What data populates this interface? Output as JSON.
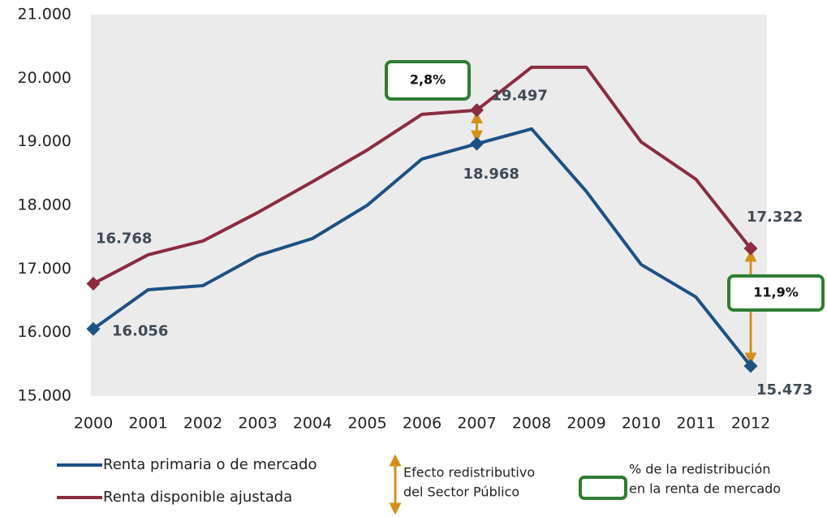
{
  "chart_data": {
    "type": "line",
    "categories": [
      "2000",
      "2001",
      "2002",
      "2003",
      "2004",
      "2005",
      "2006",
      "2007",
      "2008",
      "2009",
      "2010",
      "2011",
      "2012"
    ],
    "series": [
      {
        "name": "Renta primaria o de mercado",
        "color": "#1d5184",
        "values": [
          16056,
          16673,
          16737,
          17209,
          17478,
          18001,
          18729,
          18968,
          19202,
          18218,
          17069,
          16558,
          15473
        ],
        "value_labels": [
          "16.056",
          null,
          null,
          null,
          null,
          null,
          null,
          "18.968",
          null,
          null,
          null,
          null,
          "15.473"
        ]
      },
      {
        "name": "Renta disponible ajustada",
        "color": "#8b2c3f",
        "values": [
          16768,
          17222,
          17439,
          17886,
          18372,
          18870,
          19432,
          19497,
          20172,
          20172,
          18997,
          18410,
          17322
        ],
        "value_labels": [
          "16.768",
          null,
          null,
          null,
          null,
          null,
          null,
          "19.497",
          null,
          null,
          null,
          null,
          "17.322"
        ]
      }
    ],
    "ylim": [
      15000,
      21000
    ],
    "yticks": [
      {
        "value": 15000,
        "label": "15.000"
      },
      {
        "value": 16000,
        "label": "16.000"
      },
      {
        "value": 17000,
        "label": "17.000"
      },
      {
        "value": 18000,
        "label": "18.000"
      },
      {
        "value": 19000,
        "label": "19.000"
      },
      {
        "value": 20000,
        "label": "20.000"
      },
      {
        "value": 21000,
        "label": "21.000"
      }
    ],
    "annotations": [
      {
        "text": "2,8%",
        "category": "2007"
      },
      {
        "text": "11,9%",
        "category": "2012"
      }
    ],
    "arrow_legend": [
      "Efecto redistributivo",
      "del Sector Público"
    ],
    "box_legend": [
      "% de la redistribución",
      "en la renta de mercado"
    ],
    "arrow_color": "#d4901a",
    "box_color": "#2e7d32"
  }
}
